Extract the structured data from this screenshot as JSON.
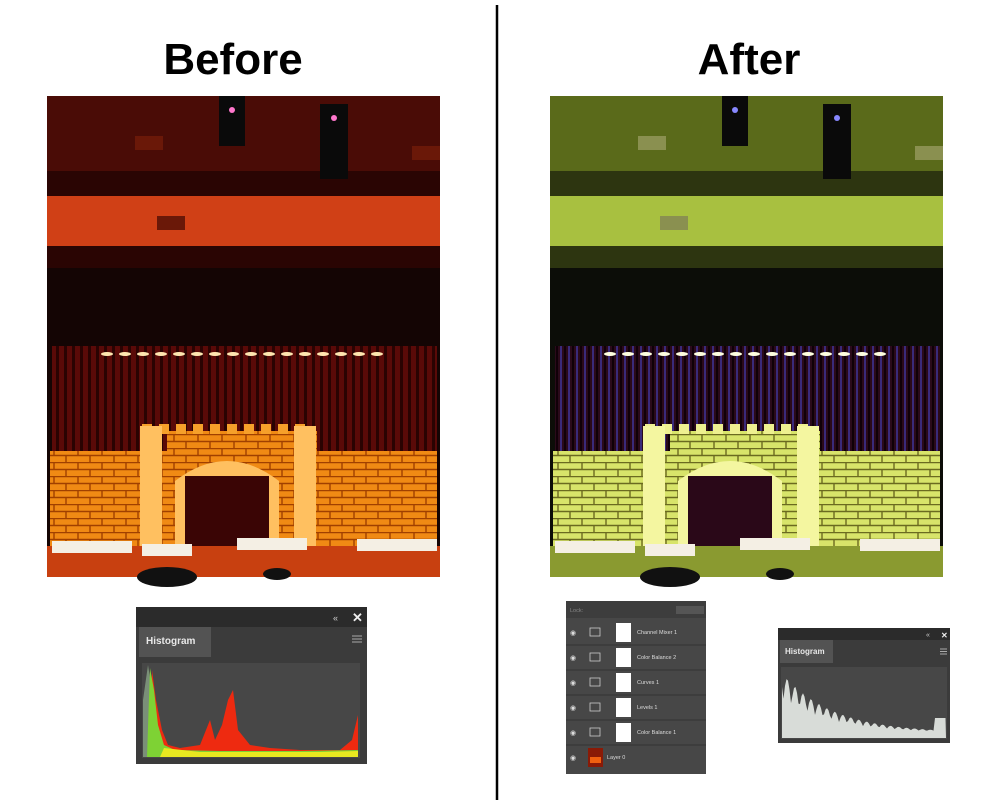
{
  "before": {
    "title": "Before",
    "histogram_panel": {
      "tab": "Histogram"
    }
  },
  "after": {
    "title": "After",
    "layers_panel": {
      "lock_label": "Lock:",
      "layers": [
        "Channel Mixer 1",
        "Color Balance 2",
        "Curves 1",
        "Levels 1",
        "Color Balance 1",
        "Layer 0"
      ]
    },
    "histogram_panel": {
      "tab": "Histogram"
    }
  }
}
